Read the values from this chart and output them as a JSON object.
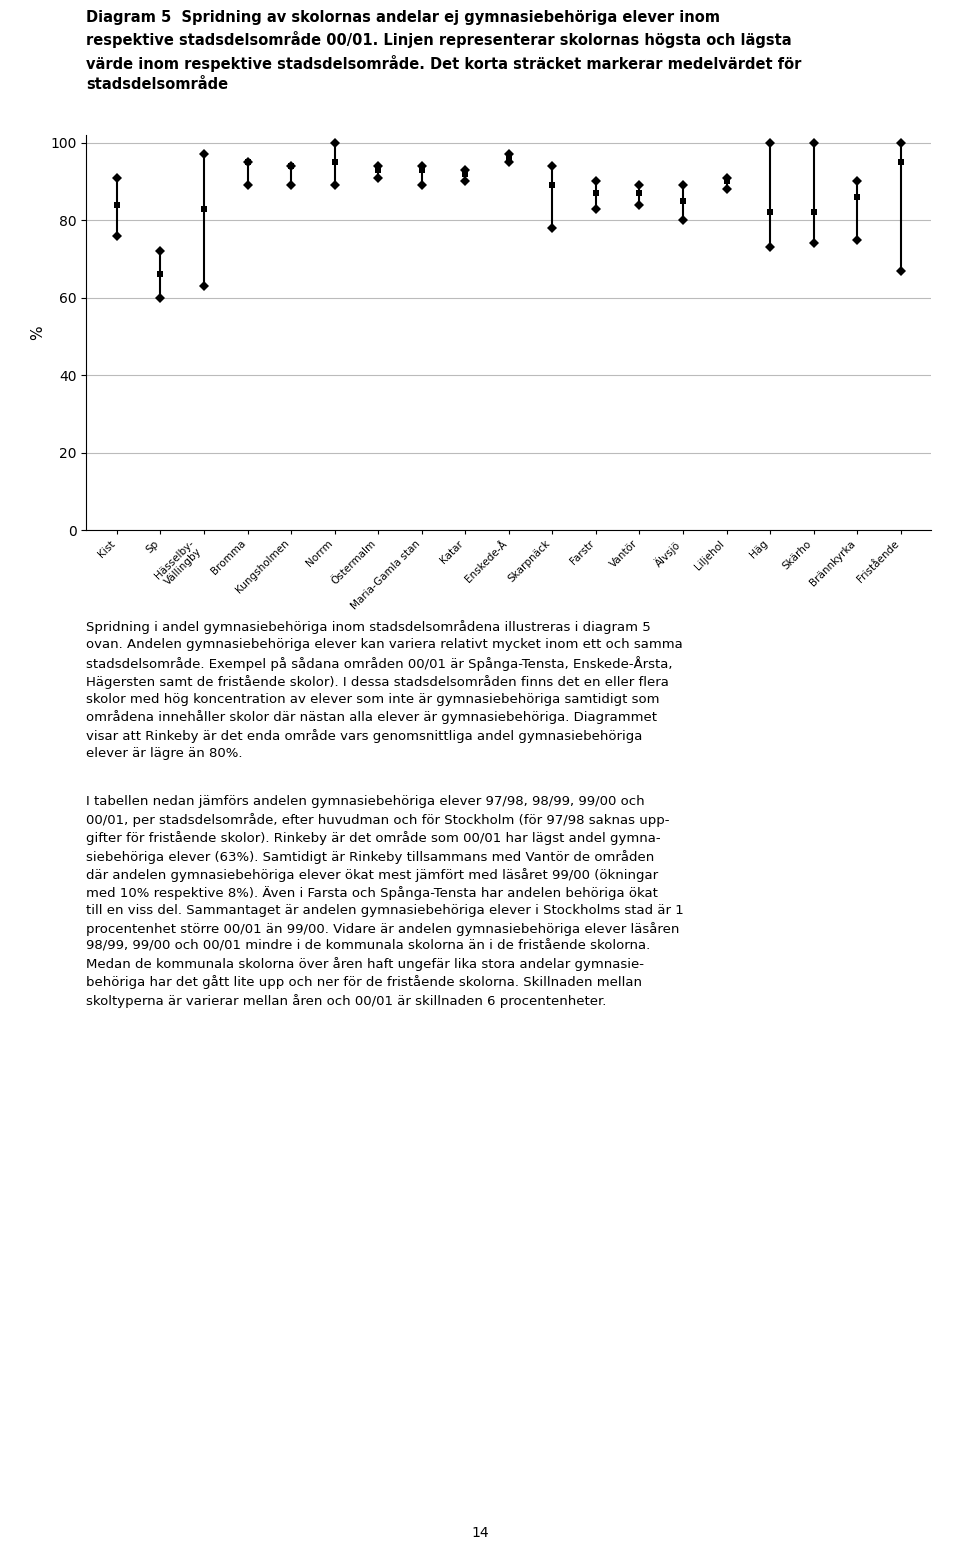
{
  "title_lines": [
    "Diagram 5  Spridning av skolornas andelar ej gymnasiebehöriga elever inom",
    "respektive stadsdelsområde 00/01. Linjen representerar skolornas högsta och lägsta",
    "värde inom respektive stadsdelsområde. Det korta sträcket markerar medelvärdet för",
    "stadsdelsområde"
  ],
  "ylabel": "%",
  "ylim": [
    0,
    102
  ],
  "yticks": [
    0,
    20,
    40,
    60,
    80,
    100
  ],
  "cat_labels_line1": [
    "Kist",
    "Sp",
    "Hässelby-Vällingby",
    "Bromma",
    "Kungsholmen",
    "Norrm",
    "Östermalm",
    "Maria-Gamla stan",
    "Katar",
    "Enskede-Å",
    "Skarpnäck",
    "Farstr",
    "Vantör",
    "Älvsjö",
    "Liljehol",
    "Häg",
    "Skärho",
    "Brännkyrka",
    "Fristående"
  ],
  "cat_labels": [
    "Kist",
    "Sp",
    "Hässelby-\nVällingby",
    "Bromma",
    "Kungsholmen",
    "Norrm",
    "Östermalm",
    "Maria-Gamla stan",
    "Katar",
    "Enskede-Å",
    "Skarpnäck",
    "Farstr",
    "Vantör",
    "Älvsjö",
    "Liljehol",
    "Häg",
    "Skärho",
    "Brännkyrka",
    "Fristående"
  ],
  "high": [
    91,
    72,
    97,
    95,
    94,
    100,
    94,
    94,
    93,
    97,
    94,
    90,
    89,
    89,
    91,
    100,
    100,
    90,
    100
  ],
  "low": [
    76,
    60,
    63,
    89,
    89,
    89,
    91,
    89,
    90,
    95,
    78,
    83,
    84,
    80,
    88,
    73,
    74,
    75,
    67
  ],
  "mean": [
    84,
    66,
    83,
    95,
    94,
    95,
    93,
    93,
    92,
    96,
    89,
    87,
    87,
    85,
    90,
    82,
    82,
    86,
    95
  ],
  "background_color": "#ffffff",
  "line_color": "#000000",
  "text_body_para1": "Spridning i andel gymnasiebehöriga inom stadsdelsområdena illustreras i diagram 5\novan. Andelen gymnasiebehöriga elever kan variera relativt mycket inom ett och samma\nstadsdelsområde. Exempel på sådana områden 00/01 är Spånga-Tensta, Enskede-Årsta,\nHägersten samt de fristående skolor). I dessa stadsdelsområden finns det en eller flera\nskolor med hög koncentration av elever som inte är gymnasiebehöriga samtidigt som\nområdena innehåller skolor där nästan alla elever är gymnasiebehöriga. Diagrammet\nvisar att Rinkeby är det enda område vars genomsnittliga andel gymnasiebehöriga\nelever är lägre än 80%.",
  "text_body_para2": "I tabellen nedan jämförs andelen gymnasiebehöriga elever 97/98, 98/99, 99/00 och\n00/01, per stadsdelsområde, efter huvudman och för Stockholm (för 97/98 saknas upp-\ngifter för fristående skolor). Rinkeby är det område som 00/01 har lägst andel gymna-\nsiebehöriga elever (63%). Samtidigt är Rinkeby tillsammans med Vantör de områden\ndär andelen gymnasiebehöriga elever ökat mest jämfört med läsåret 99/00 (ökningar\nmed 10% respektive 8%). Även i Farsta och Spånga-Tensta har andelen behöriga ökat\ntill en viss del. Sammantaget är andelen gymnasiebehöriga elever i Stockholms stad är 1\nprocentenhet större 00/01 än 99/00. Vidare är andelen gymnasiebehöriga elever läsåren\n98/99, 99/00 och 00/01 mindre i de kommunala skolorna än i de fristående skolorna.\nMedan de kommunala skolorna över åren haft ungefär lika stora andelar gymnasie-\nbehöriga har det gått lite upp och ner för de fristående skolorna. Skillnaden mellan\nskoltyperna är varierar mellan åren och 00/01 är skillnaden 6 procentenheter.",
  "page_number": "14",
  "fig_width": 9.6,
  "fig_height": 15.6
}
